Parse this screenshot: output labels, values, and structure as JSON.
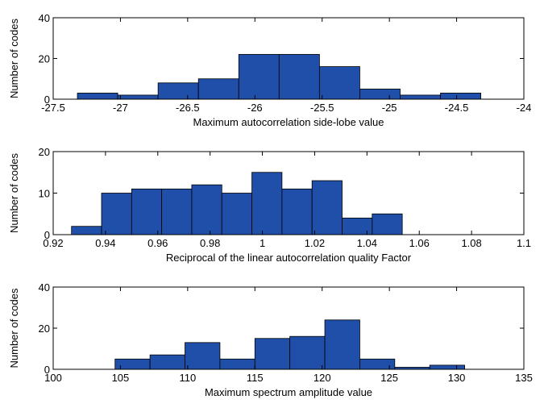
{
  "colors": {
    "bar_fill": "#1f4fa8",
    "bar_edge": "#000000",
    "axes": "#000000",
    "background": "#ffffff"
  },
  "chart_data": [
    {
      "type": "bar",
      "xlabel": "Maximum autocorrelation side-lobe value",
      "ylabel": "Number of codes",
      "xlim": [
        -27.5,
        -24
      ],
      "ylim": [
        0,
        40
      ],
      "xticks": [
        "-27.5",
        "-27",
        "-26.5",
        "-26",
        "-25.5",
        "-25",
        "-24.5",
        "-24"
      ],
      "yticks": [
        "0",
        "20",
        "40"
      ],
      "bins": [
        {
          "x0": -27.32,
          "x1": -27.02,
          "value": 3
        },
        {
          "x0": -27.02,
          "x1": -26.72,
          "value": 2
        },
        {
          "x0": -26.72,
          "x1": -26.42,
          "value": 8
        },
        {
          "x0": -26.42,
          "x1": -26.12,
          "value": 10
        },
        {
          "x0": -26.12,
          "x1": -25.82,
          "value": 22
        },
        {
          "x0": -25.82,
          "x1": -25.52,
          "value": 22
        },
        {
          "x0": -25.52,
          "x1": -25.22,
          "value": 16
        },
        {
          "x0": -25.22,
          "x1": -24.92,
          "value": 5
        },
        {
          "x0": -24.92,
          "x1": -24.62,
          "value": 2
        },
        {
          "x0": -24.62,
          "x1": -24.32,
          "value": 3
        }
      ]
    },
    {
      "type": "bar",
      "xlabel": "Reciprocal of the linear autocorrelation quality Factor",
      "ylabel": "Number of codes",
      "xlim": [
        0.92,
        1.1
      ],
      "ylim": [
        0,
        20
      ],
      "xticks": [
        "0.92",
        "0.94",
        "0.96",
        "0.98",
        "1",
        "1.02",
        "1.04",
        "1.06",
        "1.08",
        "1.1"
      ],
      "yticks": [
        "0",
        "10",
        "20"
      ],
      "bins": [
        {
          "x0": 0.927,
          "x1": 0.9385,
          "value": 2
        },
        {
          "x0": 0.9385,
          "x1": 0.95,
          "value": 10
        },
        {
          "x0": 0.95,
          "x1": 0.9615,
          "value": 11
        },
        {
          "x0": 0.9615,
          "x1": 0.973,
          "value": 11
        },
        {
          "x0": 0.973,
          "x1": 0.9845,
          "value": 12
        },
        {
          "x0": 0.9845,
          "x1": 0.996,
          "value": 10
        },
        {
          "x0": 0.996,
          "x1": 1.0075,
          "value": 15
        },
        {
          "x0": 1.0075,
          "x1": 1.019,
          "value": 11
        },
        {
          "x0": 1.019,
          "x1": 1.0305,
          "value": 13
        },
        {
          "x0": 1.0305,
          "x1": 1.042,
          "value": 4
        },
        {
          "x0": 1.042,
          "x1": 1.0535,
          "value": 5
        }
      ]
    },
    {
      "type": "bar",
      "xlabel": "Maximum spectrum amplitude value",
      "ylabel": "Number of codes",
      "xlim": [
        100,
        135
      ],
      "ylim": [
        0,
        40
      ],
      "xticks": [
        "100",
        "105",
        "110",
        "115",
        "120",
        "125",
        "130",
        "135"
      ],
      "yticks": [
        "0",
        "20",
        "40"
      ],
      "bins": [
        {
          "x0": 104.6,
          "x1": 107.2,
          "value": 5
        },
        {
          "x0": 107.2,
          "x1": 109.8,
          "value": 7
        },
        {
          "x0": 109.8,
          "x1": 112.4,
          "value": 13
        },
        {
          "x0": 112.4,
          "x1": 115.0,
          "value": 5
        },
        {
          "x0": 115.0,
          "x1": 117.6,
          "value": 15
        },
        {
          "x0": 117.6,
          "x1": 120.2,
          "value": 16
        },
        {
          "x0": 120.2,
          "x1": 122.8,
          "value": 24
        },
        {
          "x0": 122.8,
          "x1": 125.4,
          "value": 5
        },
        {
          "x0": 125.4,
          "x1": 128.0,
          "value": 1
        },
        {
          "x0": 128.0,
          "x1": 130.6,
          "value": 2
        }
      ]
    }
  ]
}
